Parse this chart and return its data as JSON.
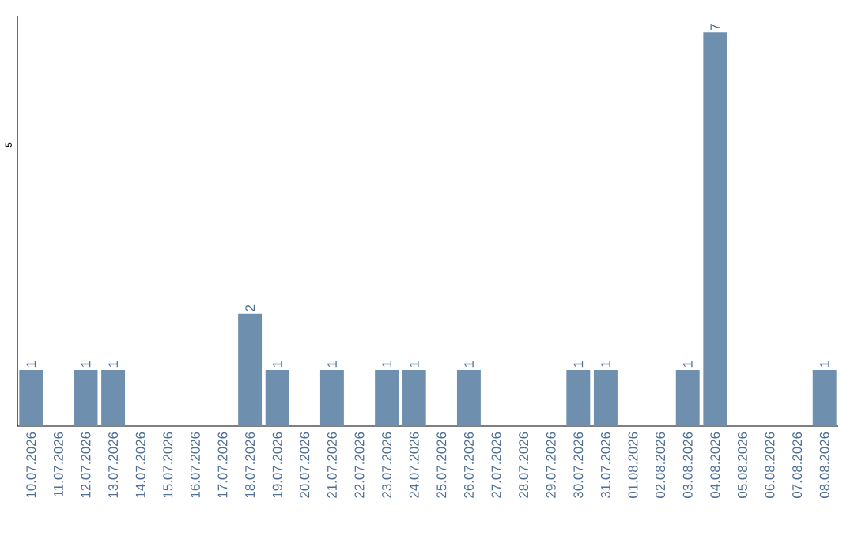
{
  "chart_data": {
    "type": "bar",
    "categories": [
      "10.07.2026",
      "11.07.2026",
      "12.07.2026",
      "13.07.2026",
      "14.07.2026",
      "15.07.2026",
      "16.07.2026",
      "17.07.2026",
      "18.07.2026",
      "19.07.2026",
      "20.07.2026",
      "21.07.2026",
      "22.07.2026",
      "23.07.2026",
      "24.07.2026",
      "25.07.2026",
      "26.07.2026",
      "27.07.2026",
      "28.07.2026",
      "29.07.2026",
      "30.07.2026",
      "31.07.2026",
      "01.08.2026",
      "02.08.2026",
      "03.08.2026",
      "04.08.2026",
      "05.08.2026",
      "06.08.2026",
      "07.08.2026",
      "08.08.2026"
    ],
    "values": [
      1,
      0,
      1,
      1,
      0,
      0,
      0,
      0,
      2,
      1,
      0,
      1,
      0,
      1,
      1,
      0,
      1,
      0,
      0,
      0,
      1,
      1,
      0,
      0,
      1,
      7,
      0,
      0,
      0,
      1
    ],
    "value_labels": [
      "1",
      null,
      "1",
      "1",
      null,
      null,
      null,
      null,
      "2",
      "1",
      null,
      "1",
      null,
      "1",
      "1",
      null,
      "1",
      null,
      null,
      null,
      "1",
      "1",
      null,
      null,
      "1",
      "7",
      null,
      null,
      null,
      "1"
    ],
    "color": "#6f8fae",
    "ylim": [
      0,
      7.3
    ],
    "yticks": [
      5
    ],
    "grid": "y"
  }
}
